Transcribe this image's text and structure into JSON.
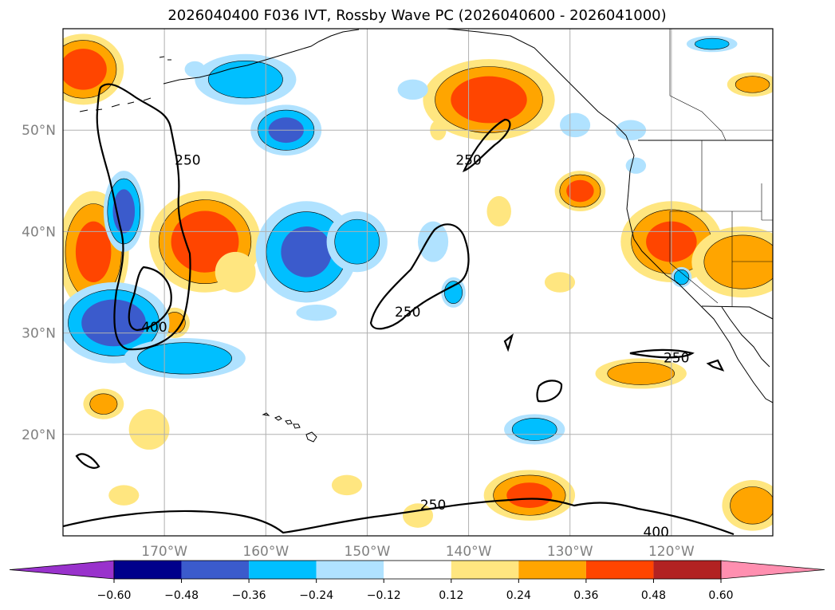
{
  "chart_data": {
    "type": "heatmap",
    "title": "2026040400 F036 IVT, Rossby Wave PC (2026040600 - 2026041000)",
    "xlabel": "",
    "ylabel": "",
    "lon_range": [
      -180,
      -110
    ],
    "lat_range": [
      10,
      60
    ],
    "x_ticks": [
      {
        "value": -170,
        "label": "170°W"
      },
      {
        "value": -160,
        "label": "160°W"
      },
      {
        "value": -150,
        "label": "150°W"
      },
      {
        "value": -140,
        "label": "140°W"
      },
      {
        "value": -130,
        "label": "130°W"
      },
      {
        "value": -120,
        "label": "120°W"
      }
    ],
    "y_ticks": [
      {
        "value": 50,
        "label": "50°N"
      },
      {
        "value": 40,
        "label": "40°N"
      },
      {
        "value": 30,
        "label": "30°N"
      },
      {
        "value": 20,
        "label": "20°N"
      }
    ],
    "grid": true,
    "colorbar": {
      "orientation": "horizontal",
      "extend": "both",
      "boundaries": [
        "-0.60",
        "-0.48",
        "-0.36",
        "-0.24",
        "-0.12",
        "0.12",
        "0.24",
        "0.36",
        "0.48",
        "0.60"
      ],
      "colors": [
        "#9932cc",
        "#00008b",
        "#3b5bcc",
        "#00bfff",
        "#b0e2ff",
        "#ffffff",
        "#ffe680",
        "#ffa500",
        "#ff4500",
        "#b22222",
        "#ff8fb0"
      ]
    },
    "contour_levels": [
      250,
      400
    ],
    "contour_labels": [
      {
        "text": "250",
        "lon": -167.7,
        "lat": 47.0
      },
      {
        "text": "250",
        "lon": -140.0,
        "lat": 47.0
      },
      {
        "text": "250",
        "lon": -146.0,
        "lat": 32.0
      },
      {
        "text": "250",
        "lon": -119.5,
        "lat": 27.5
      },
      {
        "text": "250",
        "lon": -143.5,
        "lat": 13.0
      },
      {
        "text": "400",
        "lon": -171.0,
        "lat": 30.5
      },
      {
        "text": "400",
        "lon": -121.5,
        "lat": 10.3
      }
    ],
    "pc_blobs": [
      {
        "lon": -178,
        "lat": 56,
        "rx": 4.0,
        "ry": 3.5,
        "value": 0.4
      },
      {
        "lon": -177,
        "lat": 38,
        "rx": 3.5,
        "ry": 6.0,
        "value": 0.36
      },
      {
        "lon": -166,
        "lat": 39,
        "rx": 5.5,
        "ry": 5.0,
        "value": 0.42
      },
      {
        "lon": -138,
        "lat": 53,
        "rx": 6.5,
        "ry": 4.0,
        "value": 0.4
      },
      {
        "lon": -120,
        "lat": 39,
        "rx": 5.0,
        "ry": 4.0,
        "value": 0.36
      },
      {
        "lon": -113,
        "lat": 37,
        "rx": 5.0,
        "ry": 3.5,
        "value": 0.32
      },
      {
        "lon": -129,
        "lat": 44,
        "rx": 2.5,
        "ry": 2.0,
        "value": 0.38
      },
      {
        "lon": -123,
        "lat": 26,
        "rx": 4.5,
        "ry": 1.5,
        "value": 0.3
      },
      {
        "lon": -134,
        "lat": 14,
        "rx": 4.5,
        "ry": 2.5,
        "value": 0.36
      },
      {
        "lon": -112,
        "lat": 13,
        "rx": 3.0,
        "ry": 2.5,
        "value": 0.3
      },
      {
        "lon": -176,
        "lat": 23,
        "rx": 2.0,
        "ry": 1.5,
        "value": 0.26
      },
      {
        "lon": -171.5,
        "lat": 20.5,
        "rx": 2.0,
        "ry": 2.0,
        "value": 0.22
      },
      {
        "lon": -169,
        "lat": 31,
        "rx": 1.5,
        "ry": 1.5,
        "value": 0.28
      },
      {
        "lon": -163,
        "lat": 36,
        "rx": 2.0,
        "ry": 2.0,
        "value": 0.22
      },
      {
        "lon": -112,
        "lat": 54.5,
        "rx": 2.5,
        "ry": 1.2,
        "value": 0.26
      },
      {
        "lon": -137,
        "lat": 42,
        "rx": 1.2,
        "ry": 1.5,
        "value": 0.22
      },
      {
        "lon": -131,
        "lat": 35,
        "rx": 1.5,
        "ry": 1.0,
        "value": 0.2
      },
      {
        "lon": -174,
        "lat": 14,
        "rx": 1.5,
        "ry": 1.0,
        "value": 0.18
      },
      {
        "lon": -152,
        "lat": 15,
        "rx": 1.5,
        "ry": 1.0,
        "value": 0.2
      },
      {
        "lon": -145,
        "lat": 12,
        "rx": 1.5,
        "ry": 1.2,
        "value": 0.2
      },
      {
        "lon": -143,
        "lat": 50,
        "rx": 0.8,
        "ry": 1.0,
        "value": 0.18
      },
      {
        "lon": -167,
        "lat": 56,
        "rx": 1.0,
        "ry": 0.8,
        "value": -0.18
      },
      {
        "lon": -162,
        "lat": 55,
        "rx": 5.0,
        "ry": 2.5,
        "value": -0.3
      },
      {
        "lon": -158,
        "lat": 50,
        "rx": 3.5,
        "ry": 2.5,
        "value": -0.36
      },
      {
        "lon": -174,
        "lat": 42,
        "rx": 2.0,
        "ry": 4.0,
        "value": -0.38
      },
      {
        "lon": -156,
        "lat": 38,
        "rx": 5.0,
        "ry": 5.0,
        "value": -0.36
      },
      {
        "lon": -151,
        "lat": 39,
        "rx": 3.0,
        "ry": 3.0,
        "value": -0.3
      },
      {
        "lon": -175,
        "lat": 31,
        "rx": 5.5,
        "ry": 4.0,
        "value": -0.4
      },
      {
        "lon": -168,
        "lat": 27.5,
        "rx": 6.0,
        "ry": 2.0,
        "value": -0.34
      },
      {
        "lon": -143.5,
        "lat": 39,
        "rx": 1.5,
        "ry": 2.0,
        "value": -0.22
      },
      {
        "lon": -141.5,
        "lat": 34,
        "rx": 1.2,
        "ry": 1.5,
        "value": -0.3
      },
      {
        "lon": -133.5,
        "lat": 20.5,
        "rx": 3.0,
        "ry": 1.5,
        "value": -0.3
      },
      {
        "lon": -145.5,
        "lat": 54,
        "rx": 1.5,
        "ry": 1.0,
        "value": -0.2
      },
      {
        "lon": -129.5,
        "lat": 50.5,
        "rx": 1.5,
        "ry": 1.2,
        "value": -0.18
      },
      {
        "lon": -119,
        "lat": 35.5,
        "rx": 1.0,
        "ry": 1.0,
        "value": -0.3
      },
      {
        "lon": -124,
        "lat": 50,
        "rx": 1.5,
        "ry": 1.0,
        "value": -0.2
      },
      {
        "lon": -123.5,
        "lat": 46.5,
        "rx": 1.0,
        "ry": 0.8,
        "value": -0.18
      },
      {
        "lon": -116,
        "lat": 58.5,
        "rx": 2.5,
        "ry": 0.8,
        "value": -0.26
      },
      {
        "lon": -155,
        "lat": 32,
        "rx": 2.0,
        "ry": 0.8,
        "value": -0.2
      }
    ]
  }
}
